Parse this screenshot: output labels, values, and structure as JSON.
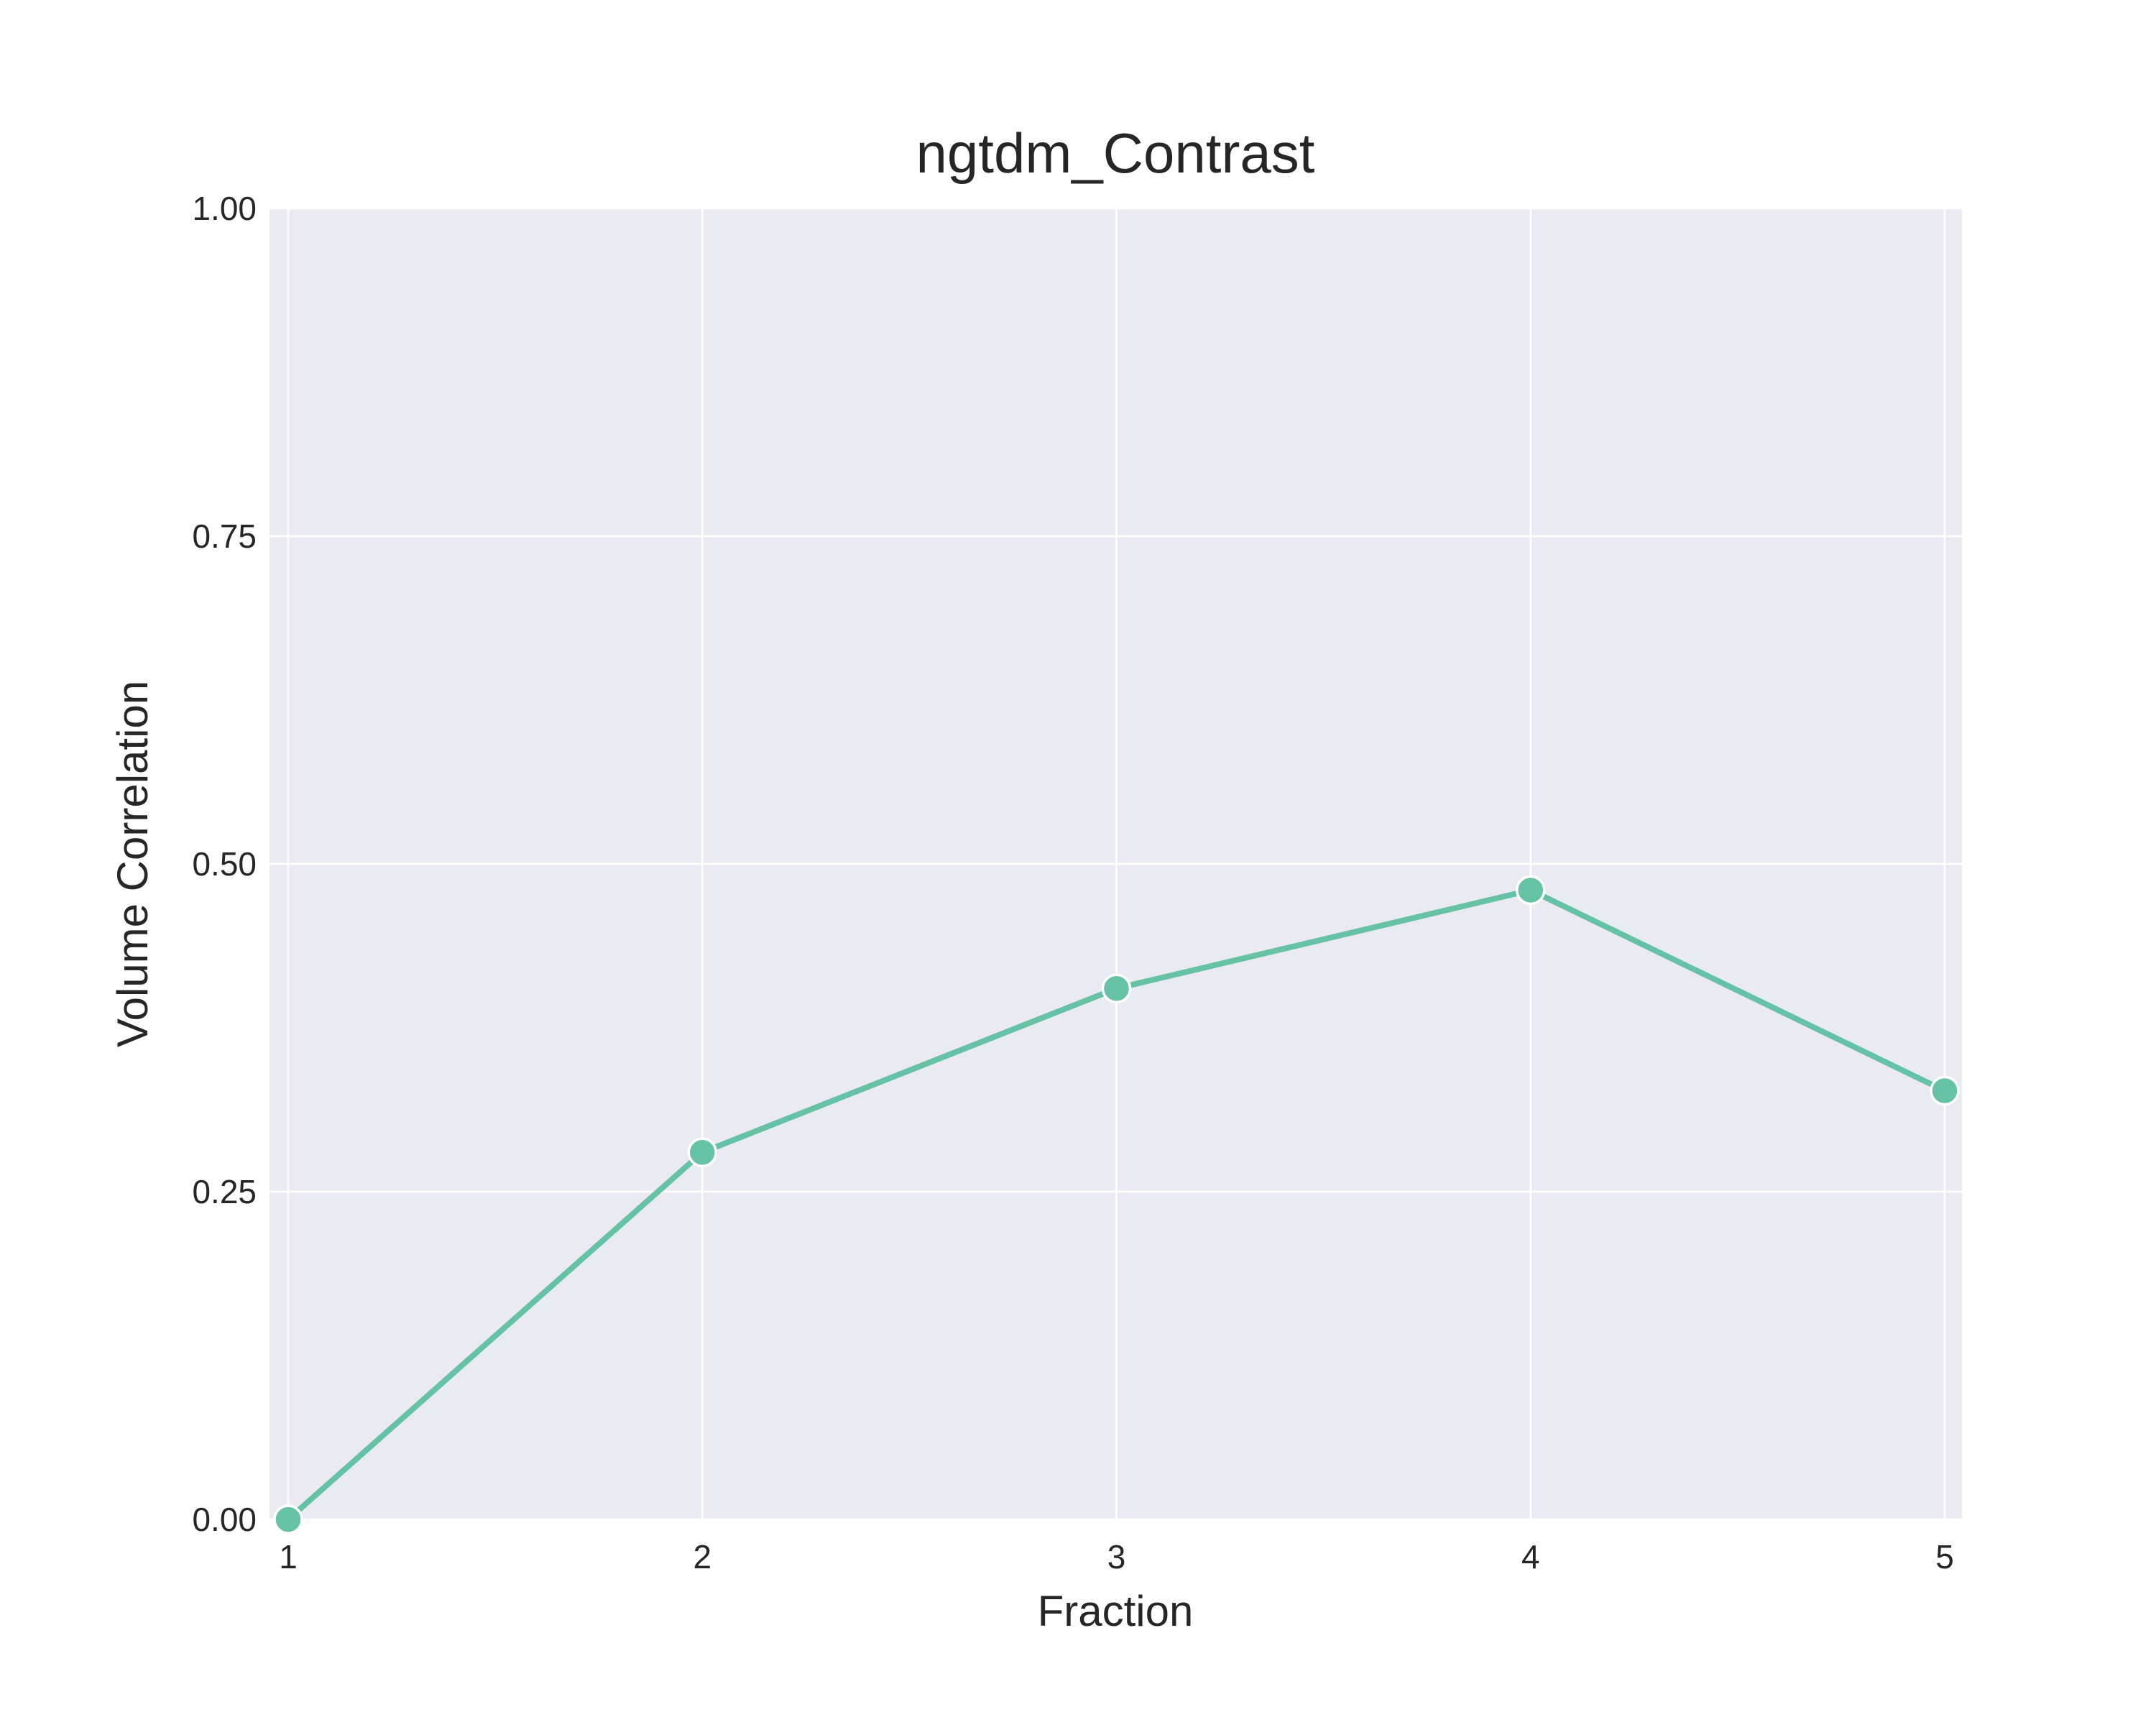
{
  "chart_data": {
    "type": "line",
    "title": "ngtdm_Contrast",
    "xlabel": "Fraction",
    "ylabel": "Volume Correlation",
    "x": [
      1,
      2,
      3,
      4,
      5
    ],
    "series": [
      {
        "values": [
          0.0,
          0.28,
          0.405,
          0.48,
          0.327
        ]
      }
    ],
    "xlim": [
      1,
      5
    ],
    "ylim": [
      0,
      1
    ],
    "yticks": [
      "0.00",
      "0.25",
      "0.50",
      "0.75",
      "1.00"
    ],
    "xticks": [
      "1",
      "2",
      "3",
      "4",
      "5"
    ],
    "grid": true,
    "colors": {
      "line": "#66c2a5",
      "plot_background": "#eaeaf2",
      "grid": "#ffffff",
      "text": "#262626"
    }
  }
}
